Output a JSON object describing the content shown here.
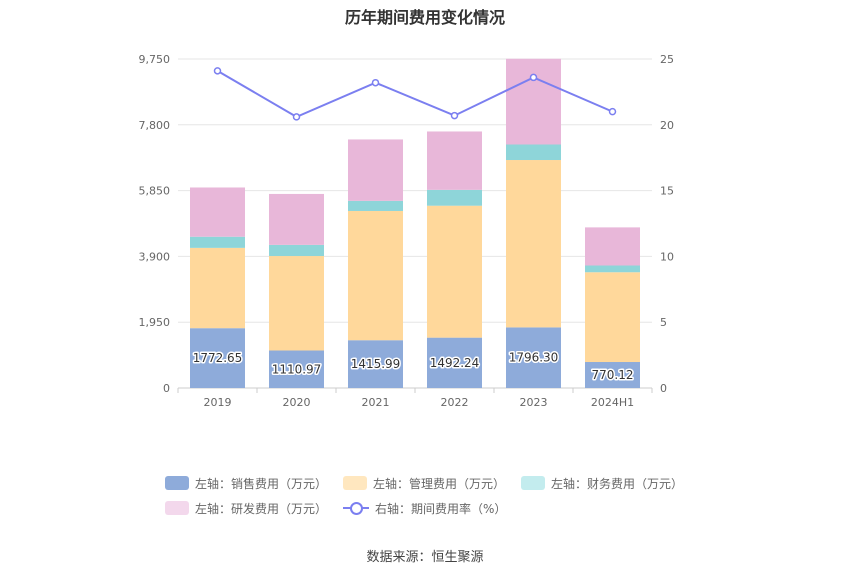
{
  "chart_data": {
    "type": "bar",
    "title": "历年期间费用变化情况",
    "categories": [
      "2019",
      "2020",
      "2021",
      "2022",
      "2023",
      "2024H1"
    ],
    "series": [
      {
        "name": "左轴：销售费用（万元）",
        "axis": "left",
        "color": "#8eabda",
        "values": [
          1772.65,
          1110.97,
          1415.99,
          1492.24,
          1796.3,
          770.12
        ],
        "labels": [
          "1772.65",
          "1110.97",
          "1415.99",
          "1492.24",
          "1796.30",
          "770.12"
        ]
      },
      {
        "name": "左轴：管理费用（万元）",
        "axis": "left",
        "color": "#ffd89b",
        "values": [
          2380,
          2800,
          3830,
          3910,
          4960,
          2660
        ]
      },
      {
        "name": "左轴：财务费用（万元）",
        "axis": "left",
        "color": "#8ed5d9",
        "values": [
          330,
          330,
          300,
          470,
          460,
          200
        ]
      },
      {
        "name": "左轴：研发费用（万元）",
        "axis": "left",
        "color": "#e8b7d9",
        "values": [
          1460,
          1510,
          1820,
          1730,
          2540,
          1130
        ]
      }
    ],
    "line_series": {
      "name": "右轴：期间费用率（%）",
      "axis": "right",
      "color": "#7b7ff0",
      "values": [
        24.1,
        20.6,
        23.2,
        20.7,
        23.6,
        21.0
      ]
    },
    "left_axis": {
      "min": 0,
      "max": 9750,
      "ticks": [
        0,
        1950,
        3900,
        5850,
        7800,
        9750
      ],
      "tick_labels": [
        "0",
        "1,950",
        "3,900",
        "5,850",
        "7,800",
        "9,750"
      ]
    },
    "right_axis": {
      "min": 0,
      "max": 25,
      "ticks": [
        0,
        5,
        10,
        15,
        20,
        25
      ],
      "tick_labels": [
        "0",
        "5",
        "10",
        "15",
        "20",
        "25"
      ]
    },
    "legend_position": "bottom"
  },
  "legend": {
    "items": [
      {
        "label": "左轴：销售费用（万元）",
        "color": "#8eabda"
      },
      {
        "label": "左轴：管理费用（万元）",
        "color": "#ffe7bf"
      },
      {
        "label": "左轴：财务费用（万元）",
        "color": "#c3ecee"
      },
      {
        "label": "左轴：研发费用（万元）",
        "color": "#f3d8ec"
      },
      {
        "label": "右轴：期间费用率（%）",
        "color": "#7b7ff0"
      }
    ]
  },
  "footer": {
    "source": "数据来源：恒生聚源"
  }
}
